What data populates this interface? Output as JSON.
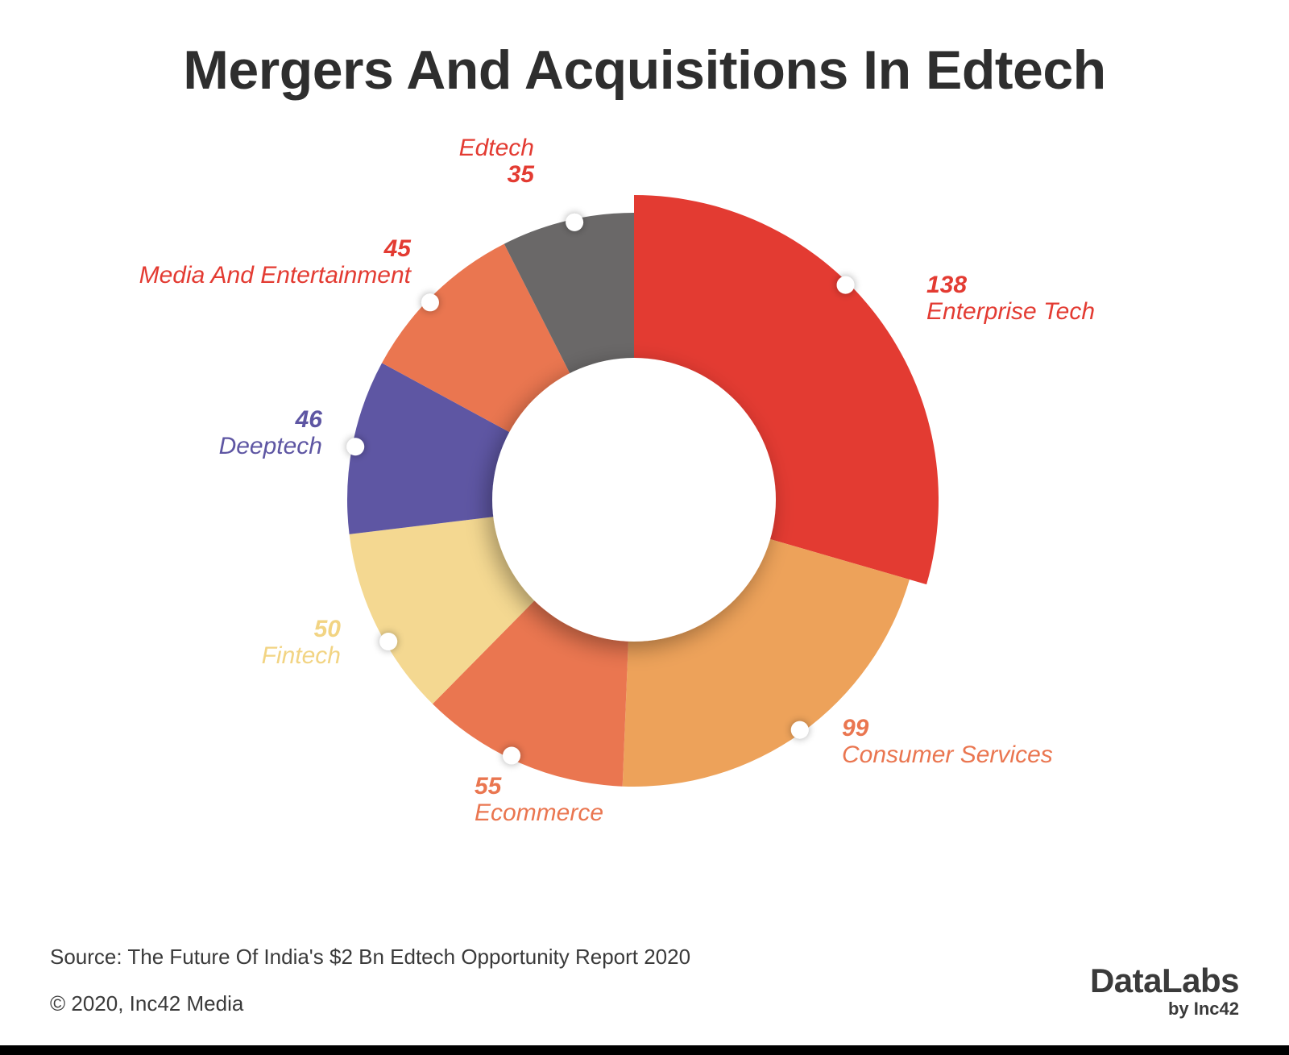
{
  "chart_data": {
    "type": "pie",
    "title": "Mergers And Acquisitions In Edtech",
    "slices": [
      {
        "label": "Enterprise Tech",
        "value": 138,
        "color": "#e33b32",
        "label_color": "#e33b32",
        "value_first": true
      },
      {
        "label": "Consumer Services",
        "value": 99,
        "color": "#eda25a",
        "label_color": "#ea7650",
        "value_first": true
      },
      {
        "label": "Ecommerce",
        "value": 55,
        "color": "#ea7650",
        "label_color": "#ea7650",
        "value_first": true
      },
      {
        "label": "Fintech",
        "value": 50,
        "color": "#f4d891",
        "label_color": "#f2d483",
        "value_first": true
      },
      {
        "label": "Deeptech",
        "value": 46,
        "color": "#5e56a3",
        "label_color": "#5e56a3",
        "value_first": true
      },
      {
        "label": "Media And Entertainment",
        "value": 45,
        "color": "#ea7650",
        "label_color": "#e33b32",
        "value_first": true
      },
      {
        "label": "Edtech",
        "value": 35,
        "color": "#6a6868",
        "label_color": "#e33b32",
        "value_first": false
      }
    ],
    "highlighted_slice": "Enterprise Tech",
    "style": "donut"
  },
  "footer": {
    "source": "Source: The Future Of India's $2 Bn Edtech Opportunity Report 2020",
    "copyright": "© 2020, Inc42 Media"
  },
  "brand": {
    "name": "DataLabs",
    "sub": "by Inc42"
  }
}
